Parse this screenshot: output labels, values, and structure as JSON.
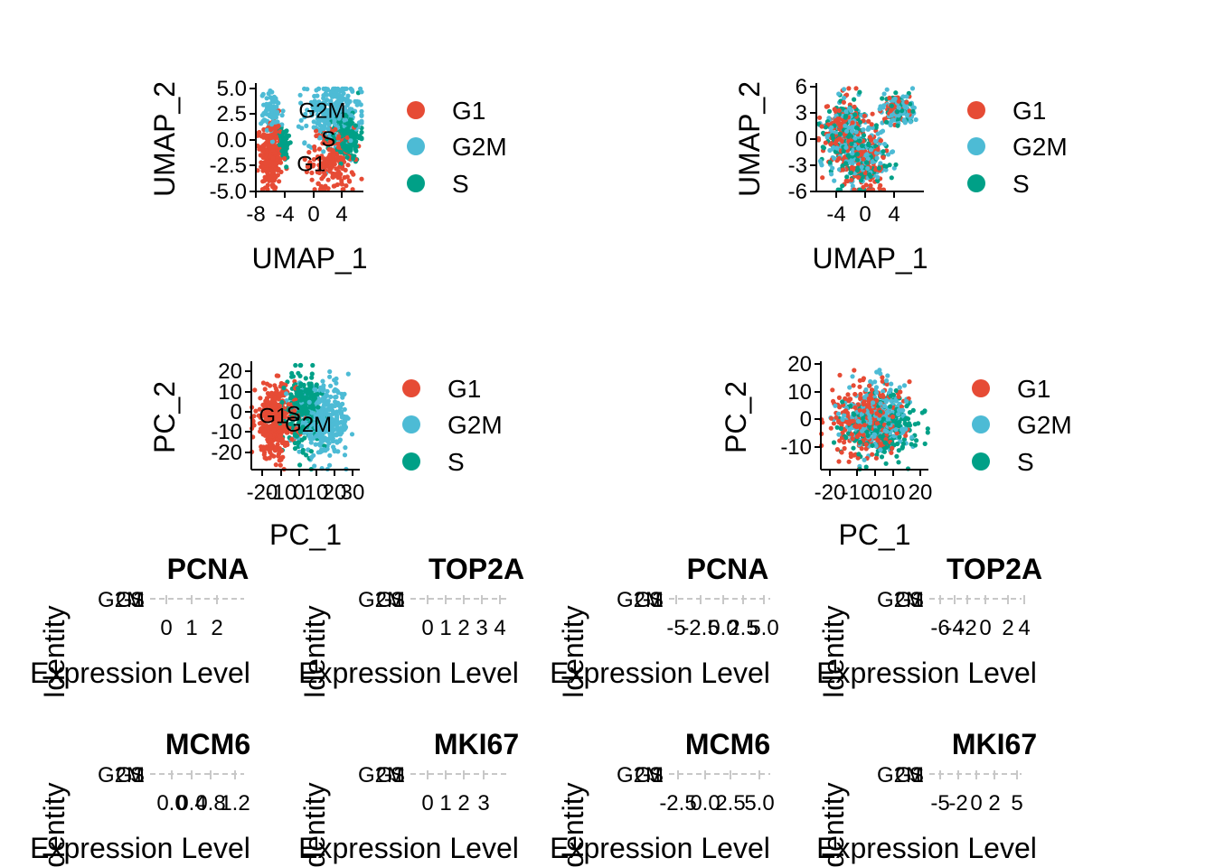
{
  "colors": {
    "G1": "#E64B35",
    "G2M": "#4DBBD5",
    "S": "#00A087"
  },
  "legend_labels": [
    "G1",
    "G2M",
    "S"
  ],
  "chart_data": [
    {
      "type": "scatter",
      "panel": "umap_integrated",
      "xlabel": "UMAP_1",
      "ylabel": "UMAP_2",
      "xticks": [
        "-8",
        "-4",
        "0",
        "4"
      ],
      "yticks": [
        "5.0",
        "2.5",
        "0.0",
        "-2.5",
        "-5.0"
      ],
      "xlim": [
        -9.5,
        8
      ],
      "ylim": [
        -5,
        5
      ],
      "series": [
        {
          "name": "G1",
          "clusters": [
            {
              "cx": -7,
              "cy": -1.5,
              "sx": 0.9,
              "sy": 1.8,
              "n": 260
            },
            {
              "cx": 3,
              "cy": -2,
              "sx": 1.8,
              "sy": 1.6,
              "n": 200
            }
          ]
        },
        {
          "name": "G2M",
          "clusters": [
            {
              "cx": -6.8,
              "cy": 2.5,
              "sx": 0.9,
              "sy": 1.0,
              "n": 80
            },
            {
              "cx": 3,
              "cy": 2.5,
              "sx": 2.2,
              "sy": 1.5,
              "n": 260
            }
          ]
        },
        {
          "name": "S",
          "clusters": [
            {
              "cx": -5,
              "cy": -0.3,
              "sx": 0.5,
              "sy": 0.9,
              "n": 60
            },
            {
              "cx": 5.2,
              "cy": 0.3,
              "sx": 1.2,
              "sy": 1.2,
              "n": 180
            }
          ]
        }
      ],
      "labels": [
        {
          "text": "G2M",
          "x": 1.3,
          "y": 2.8
        },
        {
          "text": "S",
          "x": 2.3,
          "y": 0.1
        },
        {
          "text": "G1",
          "x": -0.5,
          "y": -2.3
        }
      ]
    },
    {
      "type": "scatter",
      "panel": "umap_unintegrated",
      "xlabel": "UMAP_1",
      "ylabel": "UMAP_2",
      "xticks": [
        "-4",
        "0",
        "4"
      ],
      "yticks": [
        "6",
        "3",
        "0",
        "-3",
        "-6"
      ],
      "xlim": [
        -6.5,
        8
      ],
      "ylim": [
        -6,
        6
      ],
      "series": [
        {
          "name": "G1",
          "clusters": [
            {
              "cx": -2.8,
              "cy": 0.5,
              "sx": 1.4,
              "sy": 1.9,
              "n": 150
            },
            {
              "cx": 0,
              "cy": -2.5,
              "sx": 1.6,
              "sy": 2.0,
              "n": 120
            },
            {
              "cx": 4.5,
              "cy": 3.5,
              "sx": 1.0,
              "sy": 0.9,
              "n": 50
            }
          ]
        },
        {
          "name": "G2M",
          "clusters": [
            {
              "cx": -2.8,
              "cy": 0.5,
              "sx": 1.4,
              "sy": 1.9,
              "n": 120
            },
            {
              "cx": 0,
              "cy": -2.5,
              "sx": 1.6,
              "sy": 2.0,
              "n": 110
            },
            {
              "cx": 4.5,
              "cy": 3.5,
              "sx": 1.1,
              "sy": 0.9,
              "n": 110
            }
          ]
        },
        {
          "name": "S",
          "clusters": [
            {
              "cx": -2.8,
              "cy": 0.5,
              "sx": 1.4,
              "sy": 1.9,
              "n": 110
            },
            {
              "cx": 0,
              "cy": -2.5,
              "sx": 1.6,
              "sy": 2.0,
              "n": 100
            },
            {
              "cx": 4.5,
              "cy": 3.5,
              "sx": 1.0,
              "sy": 0.9,
              "n": 60
            }
          ]
        }
      ],
      "labels": []
    },
    {
      "type": "scatter",
      "panel": "pca_integrated",
      "xlabel": "PC_1",
      "ylabel": "PC_2",
      "xticks": [
        "-20",
        "-10",
        "0",
        "10",
        "20",
        "30"
      ],
      "yticks": [
        "20",
        "10",
        "0",
        "-10",
        "-20"
      ],
      "xlim": [
        -25,
        34
      ],
      "ylim": [
        -26,
        24
      ],
      "series": [
        {
          "name": "G1",
          "clusters": [
            {
              "cx": -12,
              "cy": -3,
              "sx": 5.5,
              "sy": 8.5,
              "n": 360
            }
          ]
        },
        {
          "name": "G2M",
          "clusters": [
            {
              "cx": 15,
              "cy": -3,
              "sx": 7.0,
              "sy": 8.0,
              "n": 330
            }
          ]
        },
        {
          "name": "S",
          "clusters": [
            {
              "cx": 3,
              "cy": 3,
              "sx": 4.5,
              "sy": 8.5,
              "n": 240
            }
          ]
        }
      ],
      "labels": [
        {
          "text": "G1",
          "x": -13,
          "y": 0
        },
        {
          "text": "S",
          "x": -2,
          "y": 1
        },
        {
          "text": "G2M",
          "x": 6,
          "y": -4
        }
      ]
    },
    {
      "type": "scatter",
      "panel": "pca_unintegrated",
      "xlabel": "PC_1",
      "ylabel": "PC_2",
      "xticks": [
        "-20",
        "-10",
        "0",
        "10",
        "20"
      ],
      "yticks": [
        "20",
        "10",
        "0",
        "-10"
      ],
      "xlim": [
        -25,
        25
      ],
      "ylim": [
        -19,
        21
      ],
      "series": [
        {
          "name": "G1",
          "clusters": [
            {
              "cx": -4,
              "cy": 0,
              "sx": 8.0,
              "sy": 6.5,
              "n": 300
            }
          ]
        },
        {
          "name": "G2M",
          "clusters": [
            {
              "cx": 1,
              "cy": 1,
              "sx": 8.0,
              "sy": 6.5,
              "n": 260
            }
          ]
        },
        {
          "name": "S",
          "clusters": [
            {
              "cx": 3,
              "cy": -2,
              "sx": 8.5,
              "sy": 6.0,
              "n": 260
            }
          ]
        }
      ],
      "labels": []
    }
  ],
  "violins": [
    {
      "title": "PCNA",
      "xticks": [
        "0",
        "1",
        "2"
      ],
      "xlabel": "Expression Level",
      "ylabel": "Identity",
      "ycats": [
        "G1",
        "G2M",
        "S"
      ]
    },
    {
      "title": "TOP2A",
      "xticks": [
        "0",
        "1",
        "2",
        "3",
        "4"
      ],
      "xlabel": "Expression Level",
      "ylabel": "Identity",
      "ycats": [
        "G1",
        "G2M",
        "S"
      ]
    },
    {
      "title": "PCNA",
      "xticks": [
        "-5",
        "-2.5",
        "0.0",
        "2.5",
        "5.0"
      ],
      "xlabel": "Expression Level",
      "ylabel": "Identity",
      "ycats": [
        "G1",
        "G2M",
        "S"
      ]
    },
    {
      "title": "TOP2A",
      "xticks": [
        "-6",
        "-4",
        "-2",
        "0",
        "2",
        "4"
      ],
      "xlabel": "Expression Level",
      "ylabel": "Identity",
      "ycats": [
        "G1",
        "G2M",
        "S"
      ]
    },
    {
      "title": "MCM6",
      "xticks": [
        "0.0",
        "0.4",
        "0.8",
        "1.2"
      ],
      "xlabel": "Expression Level",
      "ylabel": "Identity",
      "ycats": [
        "G1",
        "G2M",
        "S"
      ]
    },
    {
      "title": "MKI67",
      "xticks": [
        "0",
        "1",
        "2",
        "3"
      ],
      "xlabel": "Expression Level",
      "ylabel": "Identity",
      "ycats": [
        "G1",
        "G2M",
        "S"
      ]
    },
    {
      "title": "MCM6",
      "xticks": [
        "-2.5",
        "0.0",
        "2.5",
        "5.0"
      ],
      "xlabel": "Expression Level",
      "ylabel": "Identity",
      "ycats": [
        "G1",
        "G2M",
        "S"
      ]
    },
    {
      "title": "MKI67",
      "xticks": [
        "-5",
        "-2",
        "0",
        "2",
        "5"
      ],
      "xlabel": "Expression Level",
      "ylabel": "Identity",
      "ycats": [
        "G1",
        "G2M",
        "S"
      ]
    }
  ]
}
